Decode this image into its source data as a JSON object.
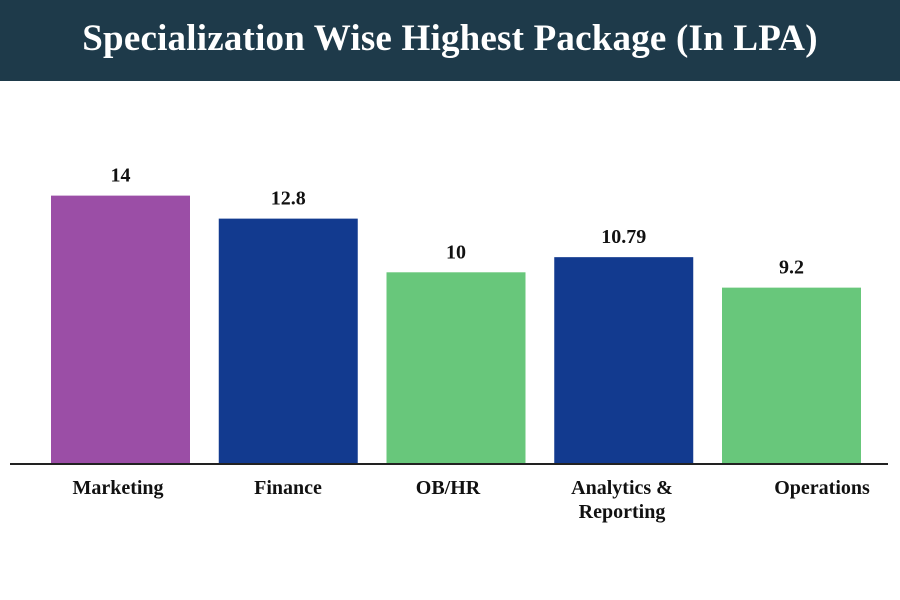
{
  "header": {
    "title": "Specialization Wise Highest Package (In LPA)",
    "background": "#1e3a4a"
  },
  "chart_data": {
    "type": "bar",
    "title": "Specialization Wise Highest Package (In LPA)",
    "categories": [
      [
        "Marketing"
      ],
      [
        "Finance"
      ],
      [
        "OB/HR"
      ],
      [
        "Analytics &",
        "Reporting"
      ],
      [
        "Operations"
      ]
    ],
    "values": [
      14,
      12.8,
      10,
      10.79,
      9.2
    ],
    "data_labels": [
      "14",
      "12.8",
      "10",
      "10.79",
      "9.2"
    ],
    "colors": [
      "#9b4ea6",
      "#123a8f",
      "#68c77b",
      "#123a8f",
      "#68c77b"
    ],
    "xlabel": "",
    "ylabel": "",
    "axis_color": "#222222",
    "grid": false,
    "legend": "none"
  }
}
